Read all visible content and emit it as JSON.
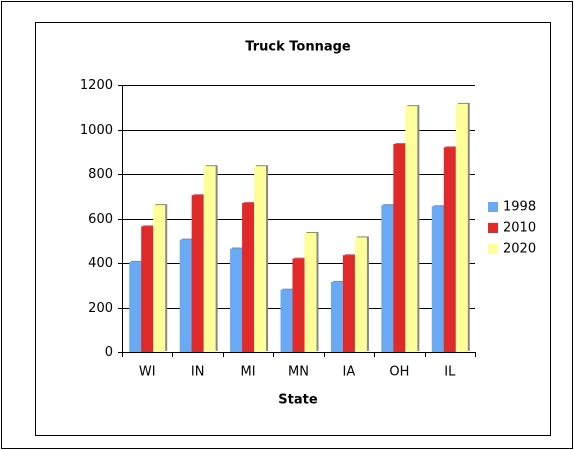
{
  "chart_data": {
    "type": "bar",
    "title": "Truck Tonnage",
    "x_label": "State",
    "categories": [
      "WI",
      "IN",
      "MI",
      "MN",
      "IA",
      "OH",
      "IL"
    ],
    "series": [
      {
        "name": "1998",
        "color": "#6aaaf4",
        "values": [
          405,
          505,
          465,
          280,
          315,
          660,
          655
        ]
      },
      {
        "name": "2010",
        "color": "#e02a2a",
        "values": [
          565,
          705,
          670,
          420,
          435,
          935,
          920
        ]
      },
      {
        "name": "2020",
        "color": "#ffff99",
        "values": [
          660,
          835,
          835,
          535,
          515,
          1105,
          1115
        ]
      }
    ],
    "ylim": [
      0,
      1200
    ],
    "yticks": [
      0,
      200,
      400,
      600,
      800,
      1000,
      1200
    ],
    "grid": true,
    "legend": "right"
  }
}
